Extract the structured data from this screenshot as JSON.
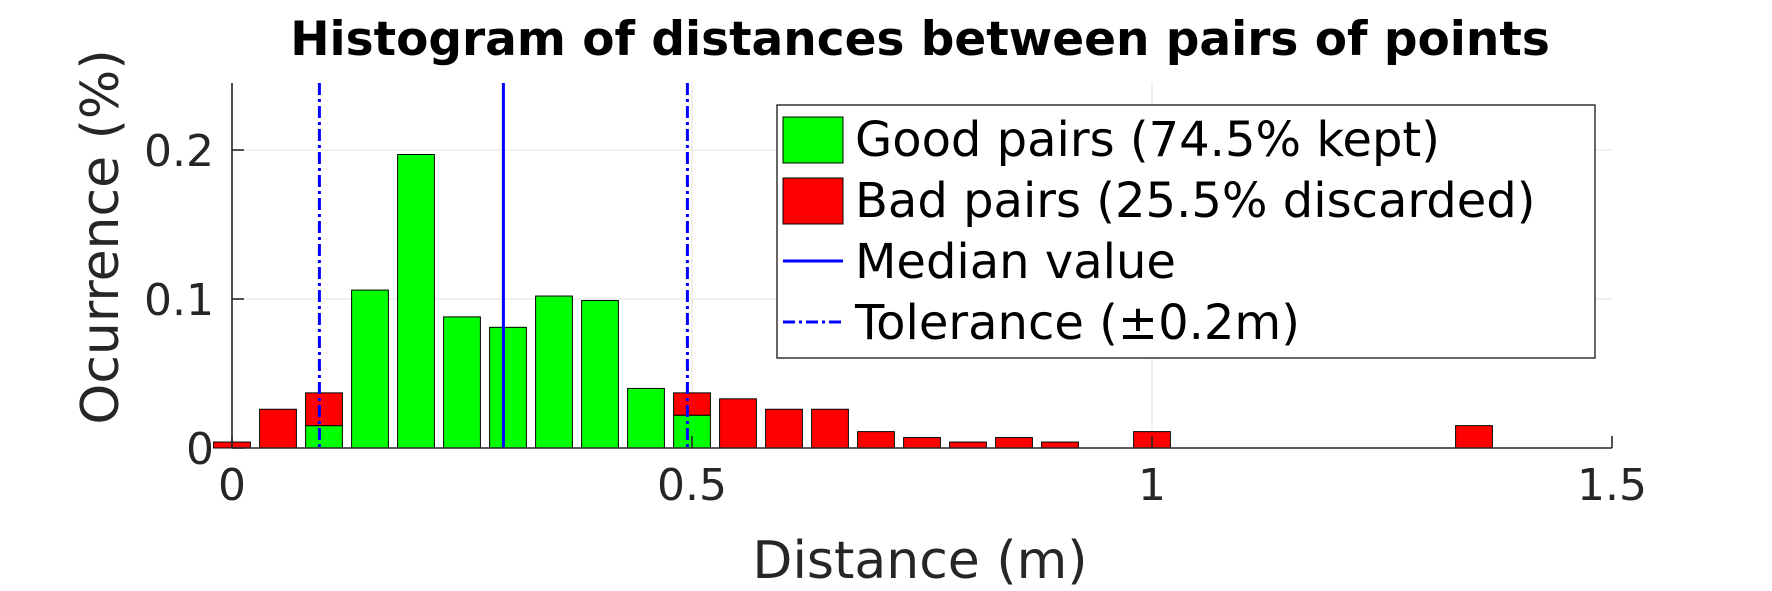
{
  "chart_data": {
    "type": "bar",
    "title": "Histogram of distances between pairs of points",
    "xlabel": "Distance (m)",
    "ylabel": "Ocurrence (%)",
    "xlim": [
      0,
      1.5
    ],
    "ylim": [
      0,
      0.245
    ],
    "xticks": [
      {
        "value": 0,
        "label": "0"
      },
      {
        "value": 0.5,
        "label": "0.5"
      },
      {
        "value": 1,
        "label": "1"
      },
      {
        "value": 1.5,
        "label": "1.5"
      }
    ],
    "yticks": [
      {
        "value": 0,
        "label": "0"
      },
      {
        "value": 0.1,
        "label": "0.1"
      },
      {
        "value": 0.2,
        "label": "0.2"
      }
    ],
    "grid": true,
    "stacked": true,
    "bin_width": 0.05,
    "bar_width": 0.04,
    "x": [
      0,
      0.05,
      0.1,
      0.15,
      0.2,
      0.25,
      0.3,
      0.35,
      0.4,
      0.45,
      0.5,
      0.55,
      0.6,
      0.65,
      0.7,
      0.75,
      0.8,
      0.85,
      0.9,
      0.95,
      1.0,
      1.05,
      1.1,
      1.15,
      1.2,
      1.25,
      1.3,
      1.35,
      1.4,
      1.45
    ],
    "series": [
      {
        "name": "Good pairs (74.5% kept)",
        "color": "#00ff00",
        "values": [
          0,
          0,
          0.015,
          0.106,
          0.197,
          0.088,
          0.081,
          0.102,
          0.099,
          0.04,
          0.022,
          0,
          0,
          0,
          0,
          0,
          0,
          0,
          0,
          0,
          0,
          0,
          0,
          0,
          0,
          0,
          0,
          0,
          0,
          0
        ]
      },
      {
        "name": "Bad pairs (25.5% discarded)",
        "color": "#ff0000",
        "values": [
          0.004,
          0.026,
          0.022,
          0,
          0,
          0,
          0,
          0,
          0,
          0,
          0.015,
          0.033,
          0.026,
          0.026,
          0.011,
          0.007,
          0.004,
          0.007,
          0.004,
          0,
          0.011,
          0,
          0,
          0,
          0,
          0,
          0,
          0.015,
          0,
          0
        ]
      }
    ],
    "lines": [
      {
        "name": "Median value",
        "x": 0.295,
        "style": "solid",
        "color": "#0000ff"
      },
      {
        "name": "Tolerance (±0.2m)",
        "x": [
          0.095,
          0.495
        ],
        "style": "dashdot",
        "color": "#0000ff"
      }
    ],
    "legend": {
      "position": "top-right",
      "entries": [
        {
          "label": "Good pairs (74.5% kept)",
          "kind": "patch",
          "color": "#00ff00"
        },
        {
          "label": "Bad pairs (25.5% discarded)",
          "kind": "patch",
          "color": "#ff0000"
        },
        {
          "label": "Median value",
          "kind": "line",
          "style": "solid",
          "color": "#0000ff"
        },
        {
          "label": "Tolerance (±0.2m)",
          "kind": "line",
          "style": "dashdot",
          "color": "#0000ff"
        }
      ]
    }
  }
}
